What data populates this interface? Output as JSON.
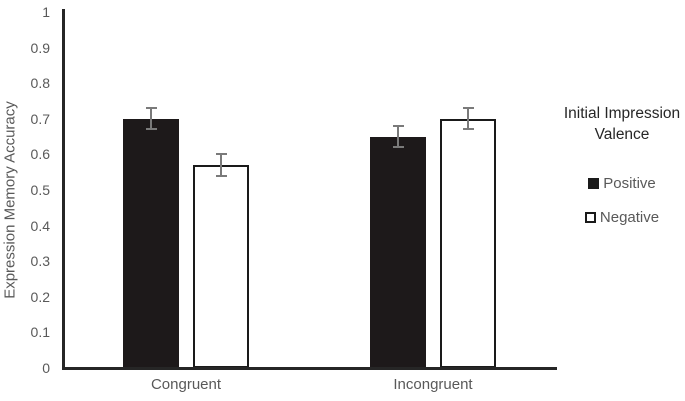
{
  "chart_data": {
    "type": "bar",
    "title": "",
    "ylabel": "Expression Memory Accuracy",
    "xlabel": "",
    "ylim": [
      0,
      1
    ],
    "ytick_step": 0.1,
    "yticks": [
      "0",
      "0.1",
      "0.2",
      "0.3",
      "0.4",
      "0.5",
      "0.6",
      "0.7",
      "0.8",
      "0.9",
      "1"
    ],
    "categories": [
      "Congruent",
      "Incongruent"
    ],
    "series": [
      {
        "name": "Positive",
        "style": "filled",
        "values": [
          0.7,
          0.65
        ],
        "errors": [
          0.03,
          0.03
        ]
      },
      {
        "name": "Negative",
        "style": "outlined",
        "values": [
          0.57,
          0.7
        ],
        "errors": [
          0.03,
          0.03
        ]
      }
    ],
    "legend_title": "Initial Impression Valence",
    "legend_position": "right",
    "grid": false
  },
  "colors": {
    "background": "#ffffff",
    "bar_fill": "#1d191a",
    "bar_outline": "#1a1a1a",
    "axis_line": "#262626",
    "error_bar": "#7a7a7a",
    "tick_text": "#595959",
    "category_text": "#595959",
    "y_title_text": "#595959",
    "legend_title_text": "#262626",
    "legend_item_text": "#595959"
  }
}
